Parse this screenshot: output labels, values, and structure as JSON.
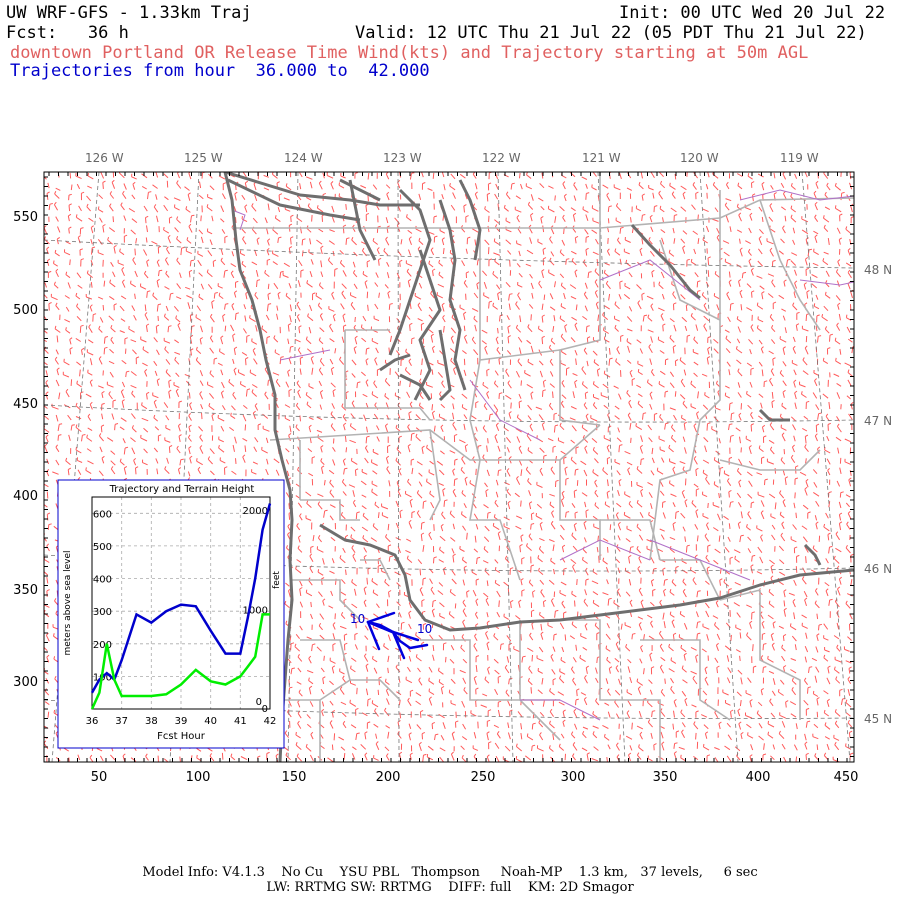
{
  "header": {
    "title": "UW WRF-GFS - 1.33km Traj",
    "init": "Init: 00 UTC Wed 20 Jul 22",
    "fcst": "Fcst:   36 h",
    "valid": "Valid: 12 UTC Thu 21 Jul 22 (05 PDT Thu 21 Jul 22)",
    "subtitle": "downtown Portland OR Release Time Wind(kts) and Trajectory starting at 50m AGL",
    "traj_hours": "Trajectories from hour  36.000 to  42.000"
  },
  "map": {
    "lon_labels": [
      "126 W",
      "125 W",
      "124 W",
      "123 W",
      "122 W",
      "121 W",
      "120 W",
      "119 W"
    ],
    "lat_labels": [
      "48 N",
      "47 N",
      "46 N",
      "45 N"
    ],
    "x_ticks": [
      "50",
      "100",
      "150",
      "200",
      "250",
      "300",
      "350",
      "400",
      "450"
    ],
    "y_ticks": [
      "550",
      "500",
      "450",
      "400",
      "350",
      "300"
    ],
    "traj_labels": [
      "10",
      "10"
    ],
    "colors": {
      "coast": "#6e6e6e",
      "county": "#b0b0b0",
      "barb": "#ff5050",
      "traj": "#0000dd",
      "river": "#a060c0"
    }
  },
  "inset": {
    "title": "Trajectory and Terrain Height",
    "ylabel_left": "meters above sea level",
    "ylabel_right": "feet",
    "xlabel": "Fcst Hour",
    "left_ticks": [
      "0",
      "100",
      "200",
      "300",
      "400",
      "500",
      "600"
    ],
    "right_ticks": [
      "0",
      "1000",
      "2000"
    ],
    "x_ticks": [
      "36",
      "37",
      "38",
      "39",
      "40",
      "41",
      "42"
    ],
    "chart_data": {
      "type": "line",
      "x": [
        36.0,
        36.25,
        36.5,
        36.75,
        37.0,
        37.5,
        38.0,
        38.5,
        39.0,
        39.5,
        40.0,
        40.5,
        41.0,
        41.25,
        41.5,
        41.75,
        42.0
      ],
      "series": [
        {
          "values": [
            50,
            90,
            110,
            90,
            150,
            290,
            265,
            300,
            320,
            315,
            240,
            170,
            170,
            280,
            400,
            550,
            630
          ]
        },
        {
          "values": [
            0,
            50,
            200,
            90,
            40,
            40,
            40,
            45,
            75,
            120,
            85,
            75,
            100,
            130,
            160,
            290,
            290
          ]
        }
      ],
      "series_colors": [
        "#0000cc",
        "#00ee00"
      ],
      "xlim": [
        36,
        42
      ],
      "ylim": [
        0,
        650
      ]
    }
  },
  "footer": {
    "line1": "Model Info: V4.1.3    No Cu    YSU PBL   Thompson     Noah-MP    1.3 km,   37 levels,     6 sec",
    "line2": "LW: RRTMG SW: RRTMG    DIFF: full    KM: 2D Smagor"
  }
}
